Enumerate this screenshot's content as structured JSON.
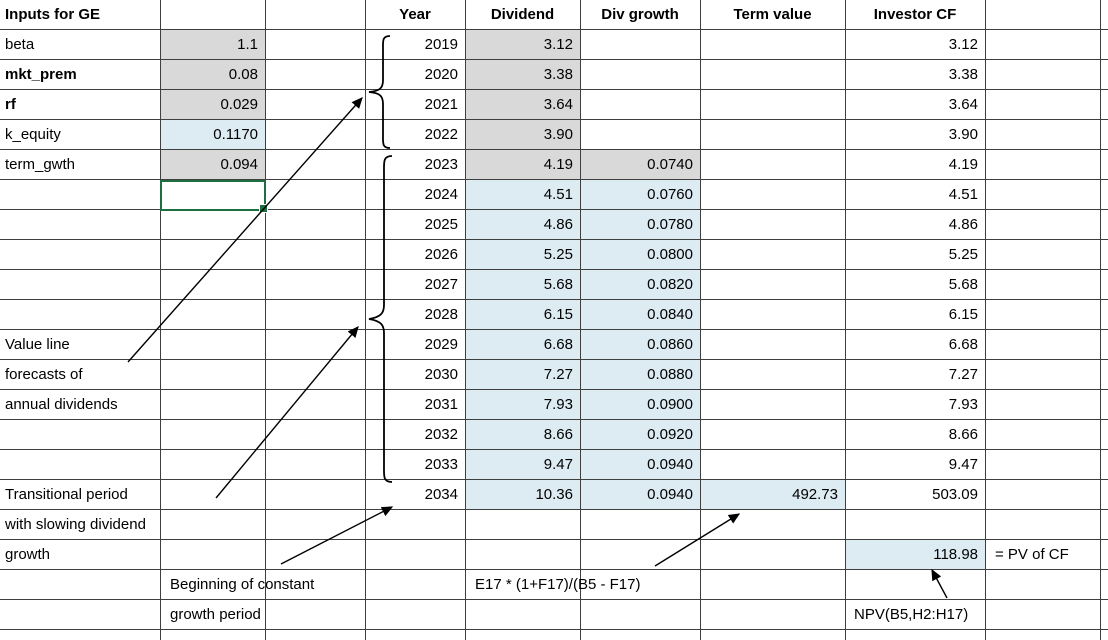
{
  "colors": {
    "gray_fill": "#d9d9d9",
    "blue_fill": "#ddebf3",
    "selection_green": "#1d6f42",
    "grid_line": "#3f3f3f"
  },
  "inputs": {
    "title": "Inputs for GE",
    "rows": [
      {
        "label": "beta",
        "value": "1.1",
        "bold": false,
        "fill": "gray"
      },
      {
        "label": "mkt_prem",
        "value": "0.08",
        "bold": true,
        "fill": "gray"
      },
      {
        "label": "rf",
        "value": "0.029",
        "bold": true,
        "fill": "gray"
      },
      {
        "label": "k_equity",
        "value": "0.1170",
        "bold": false,
        "fill": "blue"
      },
      {
        "label": "term_gwth",
        "value": "0.094",
        "bold": false,
        "fill": "gray"
      }
    ]
  },
  "table": {
    "headers": {
      "year": "Year",
      "dividend": "Dividend",
      "div_growth": "Div growth",
      "term_value": "Term value",
      "investor_cf": "Investor CF"
    },
    "rows": [
      {
        "year": "2019",
        "dividend": "3.12",
        "div_growth": "",
        "term_value": "",
        "investor_cf": "3.12",
        "fills": {
          "dividend": "gray",
          "growth": null,
          "term": null
        }
      },
      {
        "year": "2020",
        "dividend": "3.38",
        "div_growth": "",
        "term_value": "",
        "investor_cf": "3.38",
        "fills": {
          "dividend": "gray",
          "growth": null,
          "term": null
        }
      },
      {
        "year": "2021",
        "dividend": "3.64",
        "div_growth": "",
        "term_value": "",
        "investor_cf": "3.64",
        "fills": {
          "dividend": "gray",
          "growth": null,
          "term": null
        }
      },
      {
        "year": "2022",
        "dividend": "3.90",
        "div_growth": "",
        "term_value": "",
        "investor_cf": "3.90",
        "fills": {
          "dividend": "gray",
          "growth": null,
          "term": null
        }
      },
      {
        "year": "2023",
        "dividend": "4.19",
        "div_growth": "0.0740",
        "term_value": "",
        "investor_cf": "4.19",
        "fills": {
          "dividend": "gray",
          "growth": "gray",
          "term": null
        }
      },
      {
        "year": "2024",
        "dividend": "4.51",
        "div_growth": "0.0760",
        "term_value": "",
        "investor_cf": "4.51",
        "fills": {
          "dividend": "blue",
          "growth": "blue",
          "term": null
        }
      },
      {
        "year": "2025",
        "dividend": "4.86",
        "div_growth": "0.0780",
        "term_value": "",
        "investor_cf": "4.86",
        "fills": {
          "dividend": "blue",
          "growth": "blue",
          "term": null
        }
      },
      {
        "year": "2026",
        "dividend": "5.25",
        "div_growth": "0.0800",
        "term_value": "",
        "investor_cf": "5.25",
        "fills": {
          "dividend": "blue",
          "growth": "blue",
          "term": null
        }
      },
      {
        "year": "2027",
        "dividend": "5.68",
        "div_growth": "0.0820",
        "term_value": "",
        "investor_cf": "5.68",
        "fills": {
          "dividend": "blue",
          "growth": "blue",
          "term": null
        }
      },
      {
        "year": "2028",
        "dividend": "6.15",
        "div_growth": "0.0840",
        "term_value": "",
        "investor_cf": "6.15",
        "fills": {
          "dividend": "blue",
          "growth": "blue",
          "term": null
        }
      },
      {
        "year": "2029",
        "dividend": "6.68",
        "div_growth": "0.0860",
        "term_value": "",
        "investor_cf": "6.68",
        "fills": {
          "dividend": "blue",
          "growth": "blue",
          "term": null
        }
      },
      {
        "year": "2030",
        "dividend": "7.27",
        "div_growth": "0.0880",
        "term_value": "",
        "investor_cf": "7.27",
        "fills": {
          "dividend": "blue",
          "growth": "blue",
          "term": null
        }
      },
      {
        "year": "2031",
        "dividend": "7.93",
        "div_growth": "0.0900",
        "term_value": "",
        "investor_cf": "7.93",
        "fills": {
          "dividend": "blue",
          "growth": "blue",
          "term": null
        }
      },
      {
        "year": "2032",
        "dividend": "8.66",
        "div_growth": "0.0920",
        "term_value": "",
        "investor_cf": "8.66",
        "fills": {
          "dividend": "blue",
          "growth": "blue",
          "term": null
        }
      },
      {
        "year": "2033",
        "dividend": "9.47",
        "div_growth": "0.0940",
        "term_value": "",
        "investor_cf": "9.47",
        "fills": {
          "dividend": "blue",
          "growth": "blue",
          "term": null
        }
      },
      {
        "year": "2034",
        "dividend": "10.36",
        "div_growth": "0.0940",
        "term_value": "492.73",
        "investor_cf": "503.09",
        "fills": {
          "dividend": "blue",
          "growth": "blue",
          "term": "blue"
        }
      }
    ]
  },
  "notes": {
    "value_line": [
      "Value line",
      "forecasts of",
      "annual dividends"
    ],
    "transitional": [
      "Transitional period",
      "with slowing dividend",
      "growth"
    ],
    "constant_growth": [
      "Beginning of constant",
      "growth period"
    ],
    "term_value_formula": "E17 * (1+F17)/(B5 - F17)",
    "npv_formula": "NPV(B5,H2:H17)",
    "pv_value": "118.98",
    "pv_label": "= PV of CF"
  }
}
